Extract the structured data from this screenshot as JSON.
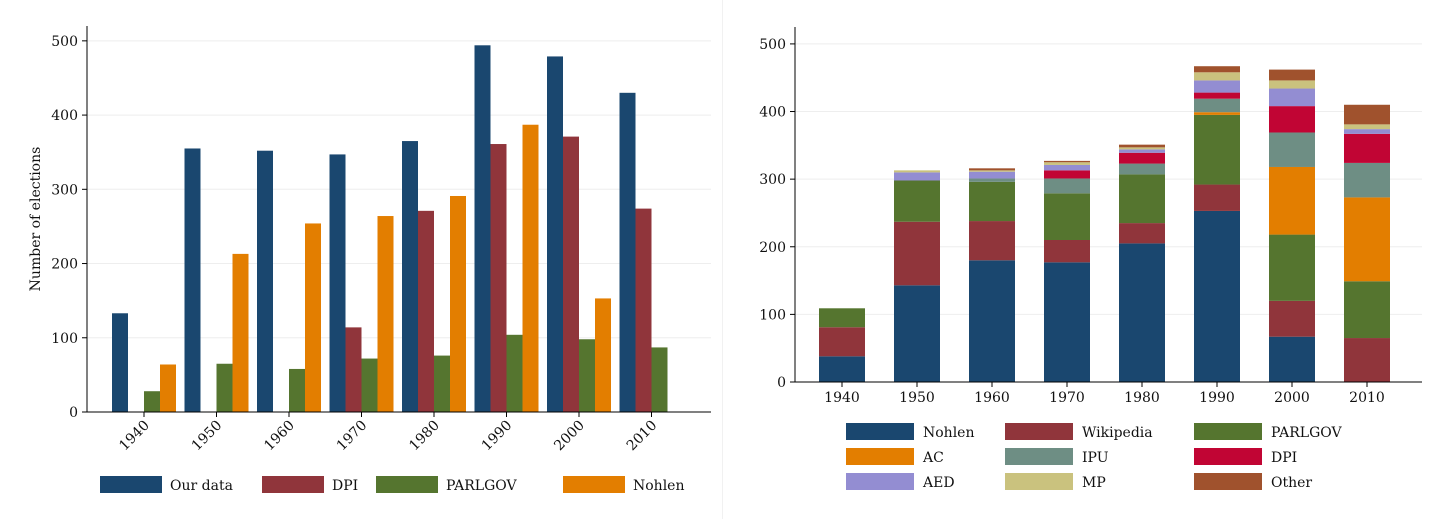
{
  "chart_data": [
    {
      "type": "bar",
      "title": "",
      "xlabel": "",
      "ylabel": "Number of elections",
      "categories": [
        "1940",
        "1950",
        "1960",
        "1970",
        "1980",
        "1990",
        "2000",
        "2010"
      ],
      "ylim": [
        0,
        520
      ],
      "yticks": [
        "0",
        "100",
        "200",
        "300",
        "400",
        "500"
      ],
      "grid": true,
      "legend_position": "bottom",
      "series": [
        {
          "name": "Our data",
          "color": "#1a476f",
          "values": [
            133,
            355,
            352,
            347,
            365,
            494,
            479,
            430
          ]
        },
        {
          "name": "DPI",
          "color": "#90353b",
          "values": [
            0,
            0,
            0,
            114,
            271,
            361,
            371,
            274
          ]
        },
        {
          "name": "PARLGOV",
          "color": "#55752f",
          "values": [
            28,
            65,
            58,
            72,
            76,
            104,
            98,
            87
          ]
        },
        {
          "name": "Nohlen",
          "color": "#e37e00",
          "values": [
            64,
            213,
            254,
            264,
            291,
            387,
            153,
            0
          ]
        }
      ]
    },
    {
      "type": "bar",
      "stacked": true,
      "title": "",
      "xlabel": "",
      "ylabel": "",
      "categories": [
        "1940",
        "1950",
        "1960",
        "1970",
        "1980",
        "1990",
        "2000",
        "2010"
      ],
      "ylim": [
        0,
        525
      ],
      "yticks": [
        "0",
        "100",
        "200",
        "300",
        "400",
        "500"
      ],
      "grid": true,
      "legend_position": "bottom",
      "series": [
        {
          "name": "Nohlen",
          "color": "#1a476f",
          "values": [
            38,
            143,
            180,
            177,
            205,
            253,
            67,
            0
          ]
        },
        {
          "name": "Wikipedia",
          "color": "#90353b",
          "values": [
            43,
            94,
            58,
            33,
            30,
            39,
            53,
            65
          ]
        },
        {
          "name": "PARLGOV",
          "color": "#55752f",
          "values": [
            28,
            61,
            58,
            69,
            72,
            103,
            98,
            84
          ]
        },
        {
          "name": "AC",
          "color": "#e37e00",
          "values": [
            0,
            0,
            0,
            0,
            0,
            4,
            100,
            124
          ]
        },
        {
          "name": "IPU",
          "color": "#6e8e84",
          "values": [
            0,
            0,
            5,
            22,
            16,
            20,
            51,
            51
          ]
        },
        {
          "name": "DPI",
          "color": "#c10534",
          "values": [
            0,
            0,
            0,
            12,
            16,
            9,
            39,
            43
          ]
        },
        {
          "name": "AED",
          "color": "#938dd2",
          "values": [
            0,
            12,
            10,
            8,
            5,
            18,
            26,
            7
          ]
        },
        {
          "name": "MP",
          "color": "#cac27e",
          "values": [
            0,
            3,
            2,
            4,
            3,
            12,
            12,
            7
          ]
        },
        {
          "name": "Other",
          "color": "#a0522d",
          "values": [
            0,
            0,
            3,
            2,
            4,
            9,
            16,
            29
          ]
        }
      ]
    }
  ]
}
